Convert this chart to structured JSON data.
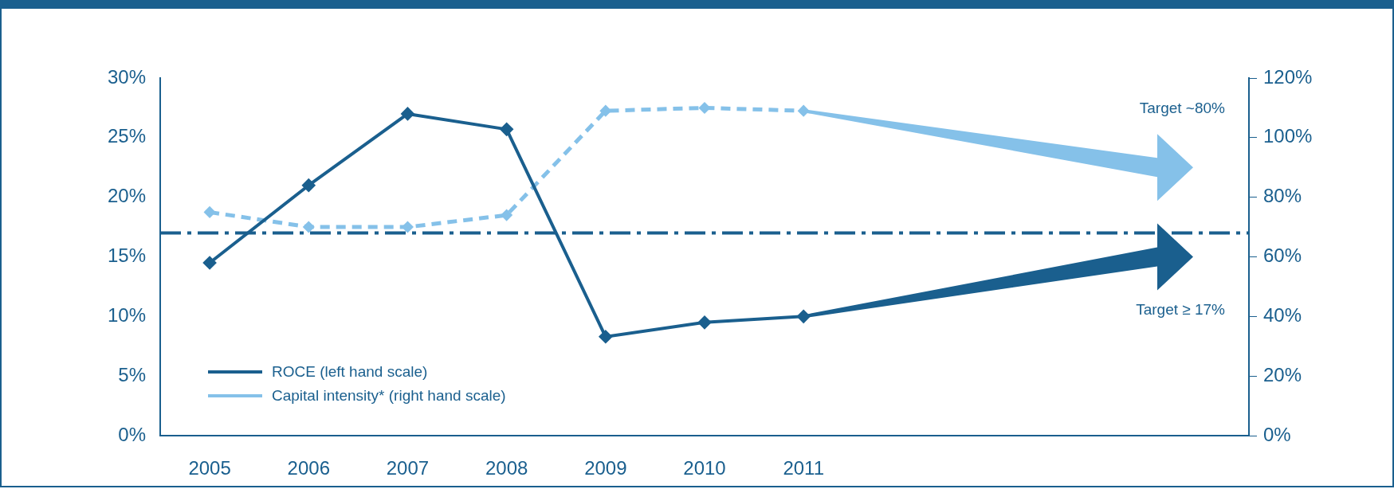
{
  "chart_data": {
    "type": "line",
    "categories": [
      "2005",
      "2006",
      "2007",
      "2008",
      "2009",
      "2010",
      "2011",
      null,
      null,
      null,
      null
    ],
    "series": [
      {
        "name": "ROCE (left hand scale)",
        "color": "#1a5f8e",
        "values": [
          14.5,
          21,
          27,
          25.7,
          8.3,
          9.5,
          10,
          null,
          null,
          null,
          null
        ],
        "line_style": "solid"
      },
      {
        "name": "Capital intensity* (right hand scale)",
        "color": "#85c1e9",
        "values": [
          75,
          70,
          70,
          74,
          109,
          110,
          109,
          null,
          null,
          null,
          null
        ],
        "axis": "y2",
        "line_style": "dashed"
      }
    ],
    "ylim": [
      0,
      30
    ],
    "yticks": [
      {
        "value": 0,
        "label": "0%"
      },
      {
        "value": 5,
        "label": "5%"
      },
      {
        "value": 10,
        "label": "10%"
      },
      {
        "value": 15,
        "label": "15%"
      },
      {
        "value": 20,
        "label": "20%"
      },
      {
        "value": 25,
        "label": "25%"
      },
      {
        "value": 30,
        "label": "30%"
      }
    ],
    "y2lim": [
      0,
      120
    ],
    "y2ticks": [
      {
        "value": 0,
        "label": "0%"
      },
      {
        "value": 20,
        "label": "20%"
      },
      {
        "value": 40,
        "label": "40%"
      },
      {
        "value": 60,
        "label": "60%"
      },
      {
        "value": 80,
        "label": "80%"
      },
      {
        "value": 100,
        "label": "100%"
      },
      {
        "value": 120,
        "label": "120%"
      }
    ],
    "ref_lines": [
      {
        "axis": "y",
        "value": 17,
        "color": "#1a5f8e",
        "line_style": "dashdot"
      }
    ],
    "annotations": [
      "Target ~80%",
      "Target ≥ 17%"
    ],
    "marker": "diamond",
    "grid": false,
    "legend": "bottom left"
  }
}
